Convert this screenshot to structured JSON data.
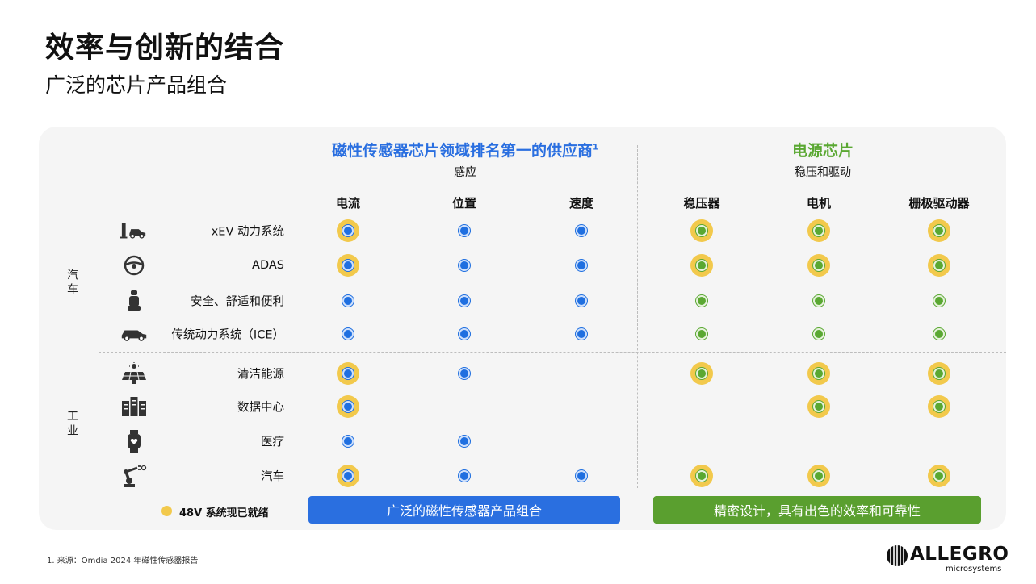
{
  "title": "效率与创新的结合",
  "subtitle": "广泛的芯片产品组合",
  "groups": {
    "sensor": {
      "title": "磁性传感器芯片领域排名第一的供应商",
      "sup": "1",
      "sub": "感应",
      "color": "#2a6fe0"
    },
    "power": {
      "title": "电源芯片",
      "sub": "稳压和驱动",
      "color": "#5aa832"
    }
  },
  "columns": [
    "电流",
    "位置",
    "速度",
    "稳压器",
    "电机",
    "栅极驱动器"
  ],
  "sections": {
    "auto": "汽车",
    "industrial": "工业"
  },
  "rows": [
    {
      "label": "xEV 动力系统",
      "icon": "ev-charging-car-icon",
      "cells": [
        "blue-halo",
        "blue",
        "blue",
        "green-halo",
        "green-halo",
        "green-halo"
      ]
    },
    {
      "label": "ADAS",
      "icon": "steering-wheel-icon",
      "cells": [
        "blue-halo",
        "blue",
        "blue",
        "green-halo",
        "green-halo",
        "green-halo"
      ]
    },
    {
      "label": "安全、舒适和便利",
      "icon": "car-seat-icon",
      "cells": [
        "blue",
        "blue",
        "blue",
        "green",
        "green",
        "green"
      ]
    },
    {
      "label": "传统动力系统（ICE）",
      "icon": "car-icon",
      "cells": [
        "blue",
        "blue",
        "blue",
        "green",
        "green",
        "green"
      ]
    },
    {
      "label": "清洁能源",
      "icon": "solar-panel-icon",
      "cells": [
        "blue-halo",
        "blue",
        "",
        "green-halo",
        "green-halo",
        "green-halo"
      ]
    },
    {
      "label": "数据中心",
      "icon": "server-rack-icon",
      "cells": [
        "blue-halo",
        "",
        "",
        "",
        "green-halo",
        "green-halo"
      ]
    },
    {
      "label": "医疗",
      "icon": "wearable-heart-icon",
      "cells": [
        "blue",
        "blue",
        "",
        "",
        "",
        ""
      ]
    },
    {
      "label": "汽车",
      "icon": "robot-arm-icon",
      "cells": [
        "blue-halo",
        "blue",
        "blue",
        "green-halo",
        "green-halo",
        "green-halo"
      ]
    }
  ],
  "legend": {
    "label": "48V 系统现已就绪",
    "color": "#f2c94c"
  },
  "banners": {
    "sensor": {
      "text": "广泛的磁性传感器产品组合",
      "color": "#2a6fe0"
    },
    "power": {
      "text": "精密设计，具有出色的效率和可靠性",
      "color": "#5a9f2f"
    }
  },
  "footnote": "1. 来源：Omdia 2024 年磁性传感器报告",
  "logo": {
    "name": "ALLEGRO",
    "sub": "microsystems"
  }
}
